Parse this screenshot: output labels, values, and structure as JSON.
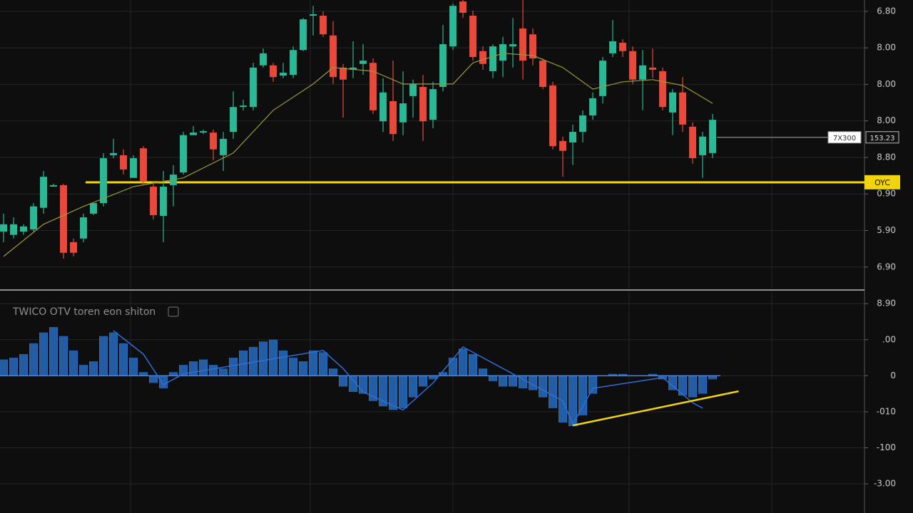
{
  "chart_data": [
    {
      "type": "candlestick",
      "categories": [
        null,
        null,
        null,
        null,
        null,
        null,
        null,
        null,
        null,
        null,
        null,
        null,
        null,
        null,
        null,
        null,
        null,
        null,
        null,
        null,
        null,
        null,
        null,
        null,
        null,
        null,
        null,
        null,
        null,
        null,
        null,
        null,
        null,
        null,
        null,
        null,
        null,
        null,
        null,
        null,
        null,
        null,
        null,
        null,
        null,
        null,
        null,
        null,
        null,
        null,
        null,
        null,
        null,
        null,
        null,
        null,
        null,
        null,
        null,
        null,
        null,
        null,
        null,
        null,
        null,
        null,
        null,
        null,
        null,
        null,
        null,
        null
      ],
      "open": [
        1.97,
        1.88,
        1.97,
        2.03,
        2.62,
        3.2,
        3.24,
        1.68,
        1.78,
        2.46,
        2.75,
        4.06,
        4.06,
        3.44,
        4.25,
        3.2,
        2.4,
        3.24,
        3.59,
        4.61,
        4.68,
        4.68,
        4.06,
        4.7,
        5.38,
        5.38,
        6.52,
        6.52,
        6.24,
        6.26,
        6.94,
        7.88,
        7.88,
        7.34,
        6.46,
        6.4,
        6.56,
        6.59,
        4.99,
        5.54,
        4.96,
        5.68,
        5.93,
        5.03,
        5.93,
        7.04,
        8.27,
        7.88,
        6.91,
        6.36,
        6.65,
        7.04,
        7.53,
        7.37,
        6.65,
        5.97,
        4.45,
        4.41,
        4.7,
        5.15,
        5.68,
        6.85,
        7.14,
        6.91,
        6.13,
        6.46,
        6.36,
        5.23,
        5.78,
        4.84,
        4.06,
        4.12
      ],
      "high": [
        2.46,
        2.36,
        2.17,
        2.75,
        3.63,
        3.28,
        3.28,
        1.78,
        2.46,
        2.75,
        4.12,
        4.51,
        4.22,
        4.06,
        4.31,
        3.34,
        3.63,
        3.79,
        4.7,
        4.86,
        4.76,
        4.76,
        4.7,
        5.81,
        5.58,
        6.59,
        6.98,
        6.59,
        6.59,
        7.04,
        7.82,
        8.15,
        8.0,
        7.73,
        6.56,
        7.18,
        7.1,
        6.71,
        6.17,
        6.65,
        6.36,
        6.13,
        6.26,
        6.07,
        7.63,
        8.21,
        8.31,
        8.02,
        7.04,
        7.1,
        7.3,
        7.82,
        8.31,
        7.53,
        6.71,
        6.07,
        4.57,
        4.9,
        5.29,
        5.78,
        6.75,
        7.76,
        7.24,
        7.04,
        6.94,
        6.98,
        6.46,
        5.87,
        6.2,
        4.96,
        4.7,
        5.19
      ],
      "low": [
        1.68,
        1.78,
        1.88,
        1.97,
        2.46,
        3.2,
        1.23,
        1.29,
        1.68,
        2.42,
        2.66,
        3.98,
        3.53,
        3.44,
        3.24,
        2.3,
        1.68,
        2.66,
        3.53,
        4.61,
        4.64,
        3.92,
        3.63,
        4.51,
        5.29,
        5.29,
        6.46,
        6.07,
        6.17,
        6.17,
        6.91,
        7.34,
        7.3,
        6.01,
        5.09,
        6.17,
        6.26,
        5.19,
        4.7,
        4.45,
        4.61,
        5.09,
        4.45,
        4.8,
        5.81,
        6.94,
        7.82,
        6.65,
        6.4,
        6.17,
        6.2,
        6.46,
        6.13,
        6.52,
        5.87,
        4.22,
        3.47,
        3.79,
        4.41,
        5.03,
        5.48,
        6.75,
        6.75,
        6.01,
        5.29,
        6.17,
        5.29,
        4.61,
        4.7,
        3.83,
        3.44,
        3.98
      ],
      "close": [
        2.17,
        2.17,
        2.11,
        2.66,
        3.47,
        3.24,
        1.39,
        1.39,
        2.36,
        2.75,
        3.98,
        4.12,
        3.67,
        3.98,
        3.34,
        2.42,
        3.2,
        3.53,
        4.61,
        4.68,
        4.72,
        4.22,
        4.51,
        5.38,
        5.42,
        6.46,
        6.85,
        6.2,
        6.32,
        6.94,
        7.78,
        7.92,
        7.37,
        6.2,
        6.13,
        6.46,
        6.65,
        5.29,
        5.78,
        4.64,
        5.48,
        6.01,
        4.99,
        5.87,
        7.1,
        8.15,
        7.96,
        6.75,
        6.56,
        7.04,
        7.1,
        7.1,
        6.65,
        6.71,
        5.93,
        4.31,
        4.18,
        4.7,
        5.15,
        5.62,
        6.65,
        7.18,
        6.91,
        6.13,
        6.52,
        6.4,
        5.38,
        5.78,
        4.9,
        3.98,
        4.57,
        5.03
      ],
      "up_color": "#2bb894",
      "down_color": "#e8493b",
      "ma": {
        "color": "#9a9a32",
        "x": [
          0,
          4,
          8,
          13,
          18,
          23,
          27,
          31,
          33,
          37,
          40,
          45,
          47,
          50,
          53,
          56,
          59,
          62,
          65,
          68,
          71
        ],
        "values": [
          1.29,
          2.17,
          2.66,
          3.2,
          3.44,
          4.12,
          5.29,
          6.01,
          6.46,
          6.36,
          6.01,
          6.01,
          6.59,
          6.85,
          6.79,
          6.46,
          5.87,
          6.07,
          6.13,
          5.97,
          5.48
        ]
      },
      "level": {
        "value": 3.32,
        "label": "OYC",
        "color": "#f2d40c"
      },
      "last": {
        "value": 4.55,
        "labels": [
          "7X300",
          "153.23"
        ]
      },
      "xlim": [
        -0.36,
        86.21
      ],
      "xticks": [
        12.71,
        30.71,
        45,
        62.64,
        76.93
      ],
      "ylim": [
        0.41,
        8.31
      ],
      "yticks": [
        {
          "value": 8,
          "label": "6.80"
        },
        {
          "value": 7,
          "label": "8.00"
        },
        {
          "value": 6,
          "label": "8.00"
        },
        {
          "value": 5,
          "label": "8.00"
        },
        {
          "value": 4,
          "label": "8.80"
        },
        {
          "value": 3,
          "label": "0.90"
        },
        {
          "value": 2,
          "label": "5.90"
        },
        {
          "value": 1,
          "label": "6.90"
        }
      ],
      "grid": true
    },
    {
      "type": "bar",
      "title": "TWICO OTV toren eon shiton",
      "categories": [
        null,
        null,
        null,
        null,
        null,
        null,
        null,
        null,
        null,
        null,
        null,
        null,
        null,
        null,
        null,
        null,
        null,
        null,
        null,
        null,
        null,
        null,
        null,
        null,
        null,
        null,
        null,
        null,
        null,
        null,
        null,
        null,
        null,
        null,
        null,
        null,
        null,
        null,
        null,
        null,
        null,
        null,
        null,
        null,
        null,
        null,
        null,
        null,
        null,
        null,
        null,
        null,
        null,
        null,
        null,
        null,
        null,
        null,
        null,
        null,
        null,
        null,
        null,
        null,
        null,
        null,
        null,
        null,
        null,
        null,
        null,
        null
      ],
      "values": [
        0.45,
        0.5,
        0.6,
        0.9,
        1.2,
        1.35,
        1.1,
        0.7,
        0.3,
        0.4,
        1.1,
        1.2,
        0.9,
        0.5,
        0.1,
        -0.2,
        -0.35,
        0.1,
        0.3,
        0.4,
        0.45,
        0.3,
        0.2,
        0.5,
        0.7,
        0.8,
        0.95,
        1.0,
        0.7,
        0.5,
        0.4,
        0.7,
        0.65,
        0.2,
        -0.3,
        -0.45,
        -0.5,
        -0.7,
        -0.85,
        -0.95,
        -0.9,
        -0.6,
        -0.3,
        -0.1,
        0.1,
        0.5,
        0.75,
        0.6,
        0.2,
        -0.15,
        -0.3,
        -0.3,
        -0.35,
        -0.4,
        -0.6,
        -0.9,
        -1.3,
        -1.4,
        -1.1,
        -0.5,
        0.0,
        0.05,
        0.05,
        0.0,
        0.0,
        0.05,
        -0.1,
        -0.4,
        -0.55,
        -0.6,
        -0.5,
        -0.1
      ],
      "color": "#2f7fe0",
      "signal": {
        "color": "#2f6fd8",
        "x": [
          11,
          14,
          16,
          18,
          32,
          34,
          36,
          40,
          43,
          46,
          52,
          56,
          57,
          59,
          66,
          69,
          70
        ],
        "values": [
          1.25,
          0.6,
          -0.25,
          0.05,
          0.7,
          0.2,
          -0.45,
          -0.95,
          -0.2,
          0.8,
          -0.1,
          -0.7,
          -1.35,
          -0.35,
          -0.05,
          -0.75,
          -0.9
        ]
      },
      "trendline": {
        "color": "#f2d40c",
        "x": [
          57,
          73.6
        ],
        "values": [
          -1.38,
          -0.43
        ]
      },
      "xlim": [
        -0.36,
        86.21
      ],
      "xticks": [
        12.71,
        30.71,
        45,
        62.64,
        76.93
      ],
      "ylim": [
        -3.81,
        2.36
      ],
      "yticks": [
        {
          "value": 2,
          "label": "8.90"
        },
        {
          "value": 1,
          "label": ".00"
        },
        0,
        {
          "value": -1,
          "label": "-010"
        },
        {
          "value": -2,
          "label": "-100"
        },
        {
          "value": -3,
          "label": "-3.00"
        }
      ],
      "grid": true
    }
  ]
}
